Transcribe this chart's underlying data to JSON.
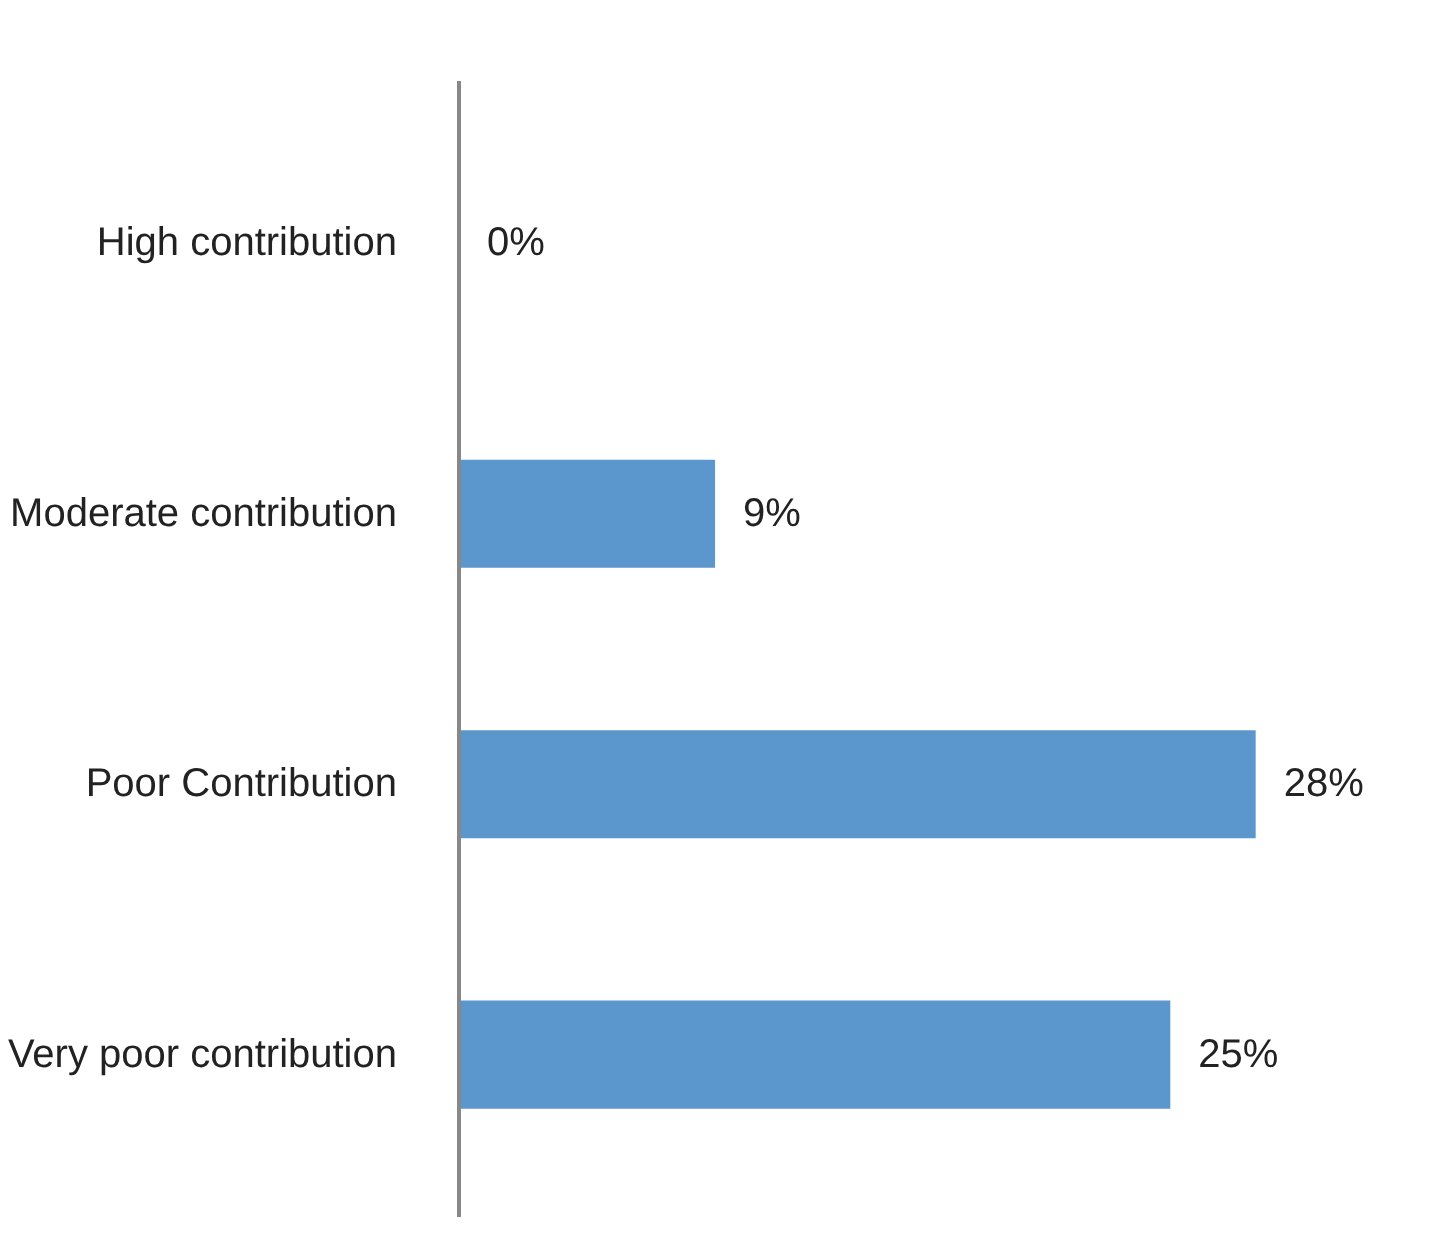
{
  "chart_data": {
    "type": "bar",
    "orientation": "horizontal",
    "categories": [
      "High contribution",
      "Moderate contribution",
      "Poor Contribution",
      "Very poor contribution"
    ],
    "values": [
      0,
      9,
      28,
      25
    ],
    "value_labels": [
      "0%",
      "9%",
      "28%",
      "25%"
    ],
    "color": "#5b96cc"
  }
}
